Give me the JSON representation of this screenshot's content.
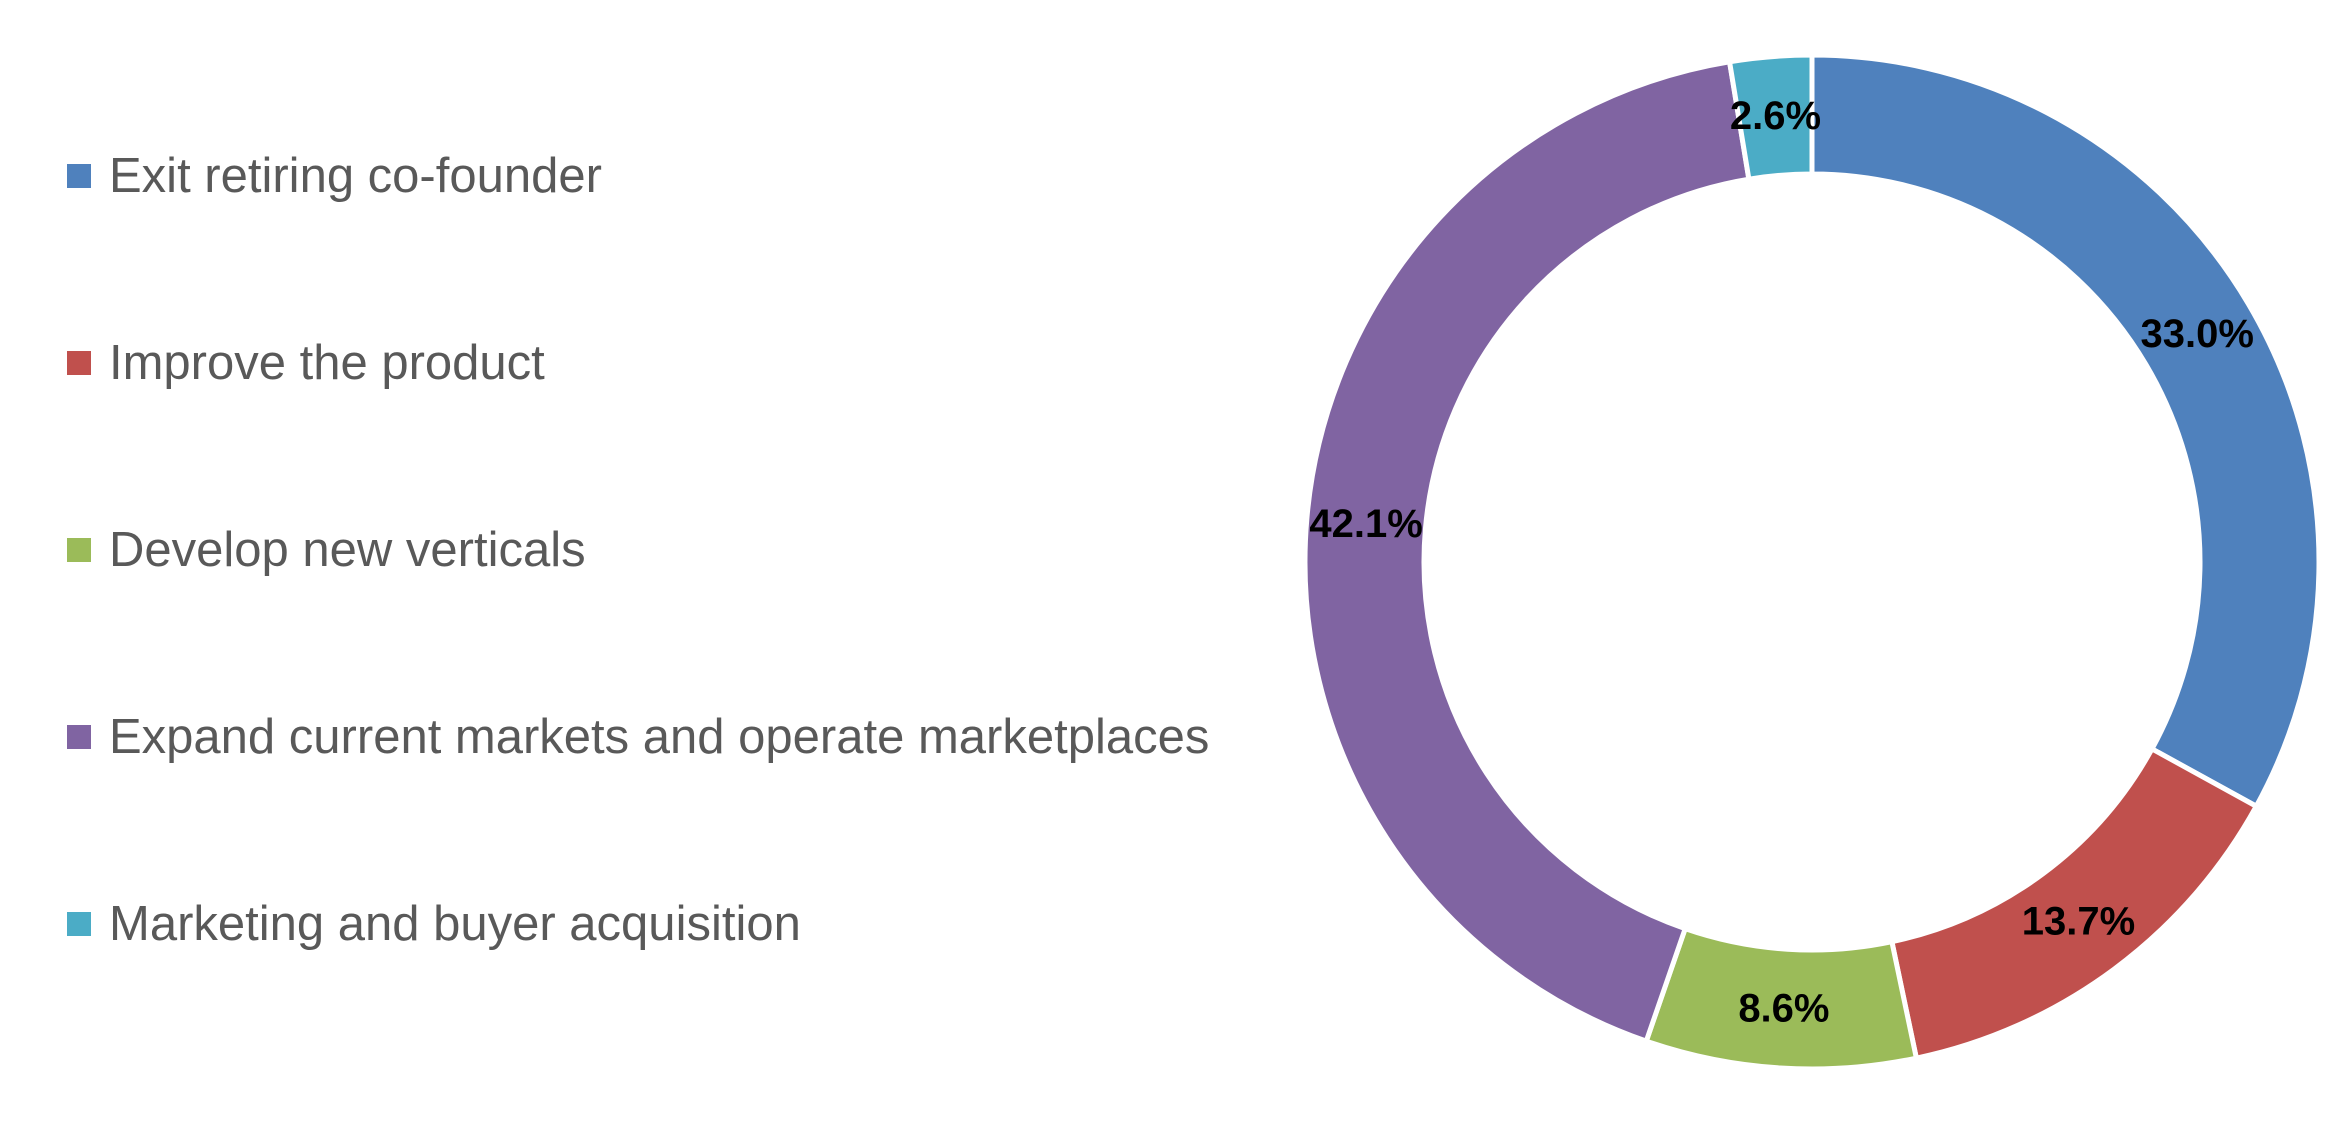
{
  "chart_data": {
    "type": "pie",
    "variant": "donut",
    "legend_position": "left",
    "series": [
      {
        "name": "Exit retiring co-founder",
        "value": 33.0,
        "label": "33.0%",
        "color": "#4F81BD"
      },
      {
        "name": "Improve the product",
        "value": 13.7,
        "label": "13.7%",
        "color": "#C0504D"
      },
      {
        "name": "Develop new verticals",
        "value": 8.6,
        "label": "8.6%",
        "color": "#9BBB59"
      },
      {
        "name": "Expand current markets and operate marketplaces",
        "value": 42.1,
        "label": "42.1%",
        "color": "#8064A2"
      },
      {
        "name": "Marketing and buyer acquisition",
        "value": 2.6,
        "label": "2.6%",
        "color": "#4BACC6"
      }
    ]
  }
}
